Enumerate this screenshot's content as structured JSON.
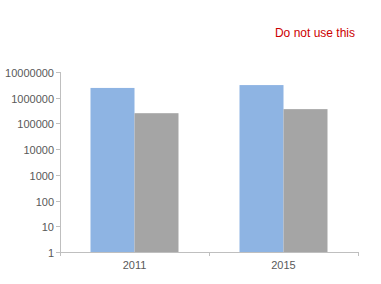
{
  "chart_data": {
    "type": "bar",
    "annotation": "Do not use this",
    "categories": [
      "2011",
      "2015"
    ],
    "series": [
      {
        "color": "#8eb4e3",
        "values": [
          2400000,
          3100000
        ]
      },
      {
        "color": "#a5a5a5",
        "values": [
          250000,
          360000
        ]
      }
    ],
    "log": "y",
    "ylim": [
      1,
      10000000
    ],
    "yticks": [
      1,
      10,
      100,
      1000,
      10000,
      100000,
      1000000,
      10000000
    ],
    "grid": false
  }
}
